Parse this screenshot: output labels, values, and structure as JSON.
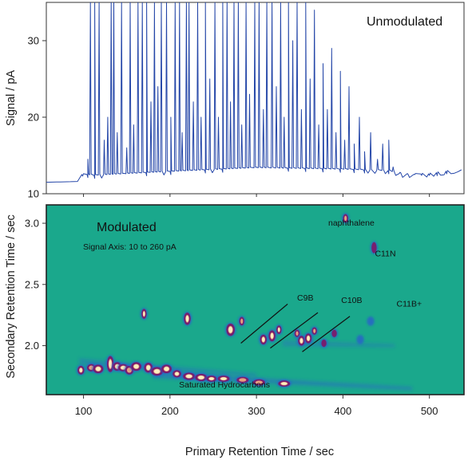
{
  "chart_data": [
    {
      "type": "line",
      "panel": "top",
      "annotation": "Unmodulated",
      "ylabel": "Signal / pA",
      "xlim": [
        57,
        540
      ],
      "ylim": [
        10,
        35
      ],
      "yticks": [
        10,
        20,
        30
      ],
      "baseline": [
        [
          57,
          11.5
        ],
        [
          93,
          11.6
        ],
        [
          100,
          12.2
        ],
        [
          111,
          12.0
        ],
        [
          200,
          12.5
        ],
        [
          300,
          13.0
        ],
        [
          400,
          12.8
        ],
        [
          455,
          12.6
        ],
        [
          470,
          12.1
        ],
        [
          500,
          12.2
        ],
        [
          530,
          12.7
        ],
        [
          540,
          13.3
        ]
      ],
      "peaks": [
        {
          "x": 99,
          "y": 12.3
        },
        {
          "x": 105,
          "y": 14.5
        },
        {
          "x": 108,
          "y": 35
        },
        {
          "x": 113,
          "y": 35
        },
        {
          "x": 118,
          "y": 35
        },
        {
          "x": 124,
          "y": 17
        },
        {
          "x": 128,
          "y": 20
        },
        {
          "x": 132,
          "y": 35
        },
        {
          "x": 135,
          "y": 35
        },
        {
          "x": 139,
          "y": 18
        },
        {
          "x": 144,
          "y": 35
        },
        {
          "x": 150,
          "y": 16
        },
        {
          "x": 154,
          "y": 35
        },
        {
          "x": 158,
          "y": 19
        },
        {
          "x": 163,
          "y": 35
        },
        {
          "x": 168,
          "y": 35
        },
        {
          "x": 173,
          "y": 35
        },
        {
          "x": 178,
          "y": 22
        },
        {
          "x": 182,
          "y": 35
        },
        {
          "x": 186,
          "y": 24
        },
        {
          "x": 190,
          "y": 35
        },
        {
          "x": 196,
          "y": 35
        },
        {
          "x": 201,
          "y": 20
        },
        {
          "x": 206,
          "y": 35
        },
        {
          "x": 211,
          "y": 35
        },
        {
          "x": 214,
          "y": 18
        },
        {
          "x": 219,
          "y": 35
        },
        {
          "x": 222,
          "y": 35
        },
        {
          "x": 227,
          "y": 22
        },
        {
          "x": 232,
          "y": 35
        },
        {
          "x": 236,
          "y": 20
        },
        {
          "x": 241,
          "y": 35
        },
        {
          "x": 246,
          "y": 25
        },
        {
          "x": 252,
          "y": 35
        },
        {
          "x": 256,
          "y": 20
        },
        {
          "x": 261,
          "y": 35
        },
        {
          "x": 266,
          "y": 35
        },
        {
          "x": 270,
          "y": 22
        },
        {
          "x": 274,
          "y": 35
        },
        {
          "x": 279,
          "y": 35
        },
        {
          "x": 283,
          "y": 19
        },
        {
          "x": 288,
          "y": 35
        },
        {
          "x": 292,
          "y": 23
        },
        {
          "x": 298,
          "y": 35
        },
        {
          "x": 303,
          "y": 35
        },
        {
          "x": 308,
          "y": 21
        },
        {
          "x": 312,
          "y": 35
        },
        {
          "x": 318,
          "y": 35
        },
        {
          "x": 323,
          "y": 24
        },
        {
          "x": 328,
          "y": 35
        },
        {
          "x": 332,
          "y": 20
        },
        {
          "x": 337,
          "y": 35
        },
        {
          "x": 342,
          "y": 30
        },
        {
          "x": 347,
          "y": 35
        },
        {
          "x": 352,
          "y": 21
        },
        {
          "x": 357,
          "y": 35
        },
        {
          "x": 362,
          "y": 25
        },
        {
          "x": 367,
          "y": 34
        },
        {
          "x": 372,
          "y": 19
        },
        {
          "x": 377,
          "y": 27
        },
        {
          "x": 382,
          "y": 21
        },
        {
          "x": 387,
          "y": 29
        },
        {
          "x": 392,
          "y": 18
        },
        {
          "x": 397,
          "y": 26
        },
        {
          "x": 402,
          "y": 17
        },
        {
          "x": 407,
          "y": 24
        },
        {
          "x": 413,
          "y": 16.5
        },
        {
          "x": 419,
          "y": 20
        },
        {
          "x": 425,
          "y": 15.5
        },
        {
          "x": 432,
          "y": 18
        },
        {
          "x": 440,
          "y": 14.5
        },
        {
          "x": 446,
          "y": 16.5
        },
        {
          "x": 453,
          "y": 17
        },
        {
          "x": 458,
          "y": 13.5
        },
        {
          "x": 466,
          "y": 12.8
        },
        {
          "x": 474,
          "y": 12.6
        },
        {
          "x": 483,
          "y": 12.5
        },
        {
          "x": 491,
          "y": 12.4
        },
        {
          "x": 500,
          "y": 12.4
        },
        {
          "x": 509,
          "y": 12.5
        },
        {
          "x": 520,
          "y": 12.6
        }
      ]
    },
    {
      "type": "heatmap",
      "panel": "bottom",
      "annotation": "Modulated",
      "subtitle": "Signal Axis: 10 to 260 pA",
      "xlabel": "Primary Retention Time / sec",
      "ylabel": "Secondary Retention Time / sec",
      "xlim": [
        57,
        540
      ],
      "ylim": [
        1.6,
        3.15
      ],
      "xticks": [
        100,
        200,
        300,
        400,
        500
      ],
      "yticks": [
        2.0,
        2.5,
        3.0
      ],
      "yticklabels": [
        "2.0",
        "2.5",
        "3.0"
      ],
      "labels": [
        {
          "text": "naphthalene",
          "x": 383,
          "y": 2.98
        },
        {
          "text": "C11N",
          "x": 437,
          "y": 2.73
        },
        {
          "text": "C9B",
          "x": 347,
          "y": 2.37
        },
        {
          "text": "C10B",
          "x": 398,
          "y": 2.35
        },
        {
          "text": "C11B+",
          "x": 462,
          "y": 2.32
        },
        {
          "text": "Saturated Hydrocarbons",
          "x": 263,
          "y": 1.66
        }
      ],
      "guide_lines": [
        [
          [
            282,
            2.02
          ],
          [
            336,
            2.34
          ]
        ],
        [
          [
            316,
            1.98
          ],
          [
            371,
            2.27
          ]
        ],
        [
          [
            353,
            1.95
          ],
          [
            408,
            2.24
          ]
        ]
      ],
      "spots": [
        {
          "x": 97,
          "y": 1.8,
          "w": 3,
          "h": 0.06,
          "i": 0.9
        },
        {
          "x": 109,
          "y": 1.82,
          "w": 4,
          "h": 0.05,
          "i": 0.8
        },
        {
          "x": 117,
          "y": 1.81,
          "w": 5,
          "h": 0.06,
          "i": 1.0
        },
        {
          "x": 131,
          "y": 1.85,
          "w": 3,
          "h": 0.12,
          "i": 0.9
        },
        {
          "x": 139,
          "y": 1.83,
          "w": 4,
          "h": 0.06,
          "i": 1.0
        },
        {
          "x": 146,
          "y": 1.82,
          "w": 5,
          "h": 0.05,
          "i": 1.0
        },
        {
          "x": 153,
          "y": 1.8,
          "w": 4,
          "h": 0.06,
          "i": 0.8
        },
        {
          "x": 161,
          "y": 1.83,
          "w": 5,
          "h": 0.06,
          "i": 0.9
        },
        {
          "x": 170,
          "y": 2.26,
          "w": 2,
          "h": 0.07,
          "i": 0.95
        },
        {
          "x": 175,
          "y": 1.82,
          "w": 4,
          "h": 0.07,
          "i": 1.0
        },
        {
          "x": 185,
          "y": 1.79,
          "w": 6,
          "h": 0.06,
          "i": 1.0
        },
        {
          "x": 196,
          "y": 1.81,
          "w": 5,
          "h": 0.06,
          "i": 0.9
        },
        {
          "x": 208,
          "y": 1.77,
          "w": 4,
          "h": 0.05,
          "i": 1.0
        },
        {
          "x": 220,
          "y": 2.22,
          "w": 3,
          "h": 0.09,
          "i": 1.0
        },
        {
          "x": 222,
          "y": 1.75,
          "w": 6,
          "h": 0.05,
          "i": 1.0
        },
        {
          "x": 236,
          "y": 1.74,
          "w": 6,
          "h": 0.05,
          "i": 1.0
        },
        {
          "x": 248,
          "y": 1.73,
          "w": 5,
          "h": 0.04,
          "i": 0.9
        },
        {
          "x": 262,
          "y": 1.73,
          "w": 6,
          "h": 0.04,
          "i": 0.9
        },
        {
          "x": 270,
          "y": 2.13,
          "w": 4,
          "h": 0.09,
          "i": 1.0
        },
        {
          "x": 284,
          "y": 1.72,
          "w": 6,
          "h": 0.04,
          "i": 0.8
        },
        {
          "x": 283,
          "y": 2.2,
          "w": 2,
          "h": 0.06,
          "i": 0.8
        },
        {
          "x": 303,
          "y": 1.7,
          "w": 6,
          "h": 0.04,
          "i": 0.8
        },
        {
          "x": 308,
          "y": 2.05,
          "w": 3,
          "h": 0.07,
          "i": 1.0
        },
        {
          "x": 318,
          "y": 2.08,
          "w": 3,
          "h": 0.08,
          "i": 1.0
        },
        {
          "x": 326,
          "y": 2.13,
          "w": 2,
          "h": 0.06,
          "i": 0.9
        },
        {
          "x": 332,
          "y": 1.69,
          "w": 6,
          "h": 0.04,
          "i": 0.9
        },
        {
          "x": 347,
          "y": 2.1,
          "w": 2,
          "h": 0.05,
          "i": 0.7
        },
        {
          "x": 352,
          "y": 2.04,
          "w": 3,
          "h": 0.07,
          "i": 1.0
        },
        {
          "x": 360,
          "y": 2.06,
          "w": 3,
          "h": 0.07,
          "i": 0.9
        },
        {
          "x": 367,
          "y": 2.12,
          "w": 2,
          "h": 0.05,
          "i": 0.7
        },
        {
          "x": 378,
          "y": 2.02,
          "w": 2,
          "h": 0.05,
          "i": 0.5
        },
        {
          "x": 390,
          "y": 2.1,
          "w": 2,
          "h": 0.05,
          "i": 0.5
        },
        {
          "x": 403,
          "y": 3.04,
          "w": 1.5,
          "h": 0.06,
          "i": 0.8
        },
        {
          "x": 436,
          "y": 2.8,
          "w": 1.5,
          "h": 0.08,
          "i": 0.6
        },
        {
          "x": 420,
          "y": 2.05,
          "w": 2,
          "h": 0.05,
          "i": 0.35
        },
        {
          "x": 432,
          "y": 2.2,
          "w": 2,
          "h": 0.05,
          "i": 0.3
        }
      ],
      "streaks": [
        {
          "x0": 180,
          "x1": 480,
          "y0": 1.76,
          "y1": 1.65,
          "i": 0.45
        },
        {
          "x0": 95,
          "x1": 300,
          "y0": 1.87,
          "y1": 1.76,
          "i": 0.35
        },
        {
          "x0": 330,
          "x1": 460,
          "y0": 2.02,
          "y1": 2.0,
          "i": 0.3
        }
      ],
      "colors": {
        "background": "#1aa88c",
        "low": "#2a5bd0",
        "mid": "#7a1a6a",
        "high": "#ffeec0"
      }
    }
  ]
}
